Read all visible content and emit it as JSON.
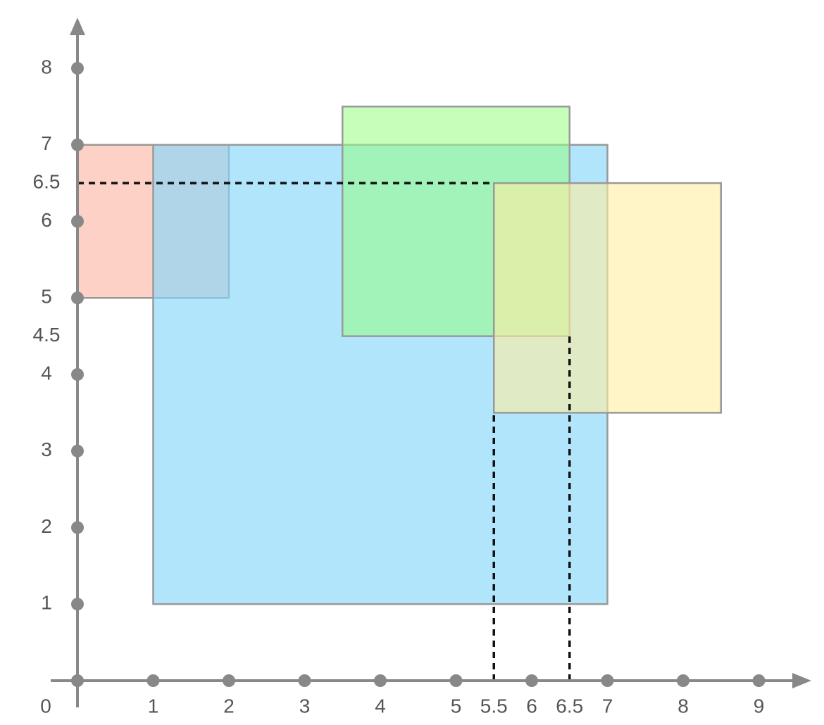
{
  "x_ticks": [
    0,
    1,
    2,
    3,
    4,
    5,
    5.5,
    6,
    6.5,
    7,
    8,
    9
  ],
  "y_ticks": [
    1,
    2,
    3,
    4,
    4.5,
    5,
    6,
    6.5,
    7,
    8
  ],
  "rectangles": [
    {
      "x1": 0,
      "y1": 5,
      "x2": 2,
      "y2": 7,
      "color": "rgba(252,190,172,0.7)"
    },
    {
      "x1": 1,
      "y1": 1,
      "x2": 7,
      "y2": 7,
      "color": "rgba(135,215,250,0.65)"
    },
    {
      "x1": 3.5,
      "y1": 4.5,
      "x2": 6.5,
      "y2": 7.5,
      "color": "rgba(150,255,130,0.55)"
    },
    {
      "x1": 5.5,
      "y1": 3.5,
      "x2": 8.5,
      "y2": 6.5,
      "color": "rgba(255,238,160,0.6)"
    }
  ],
  "guides": [
    {
      "x1": 0,
      "y1": 6.5,
      "x2": 5.5,
      "y2": 6.5
    },
    {
      "x1": 5.5,
      "y1": 0,
      "x2": 5.5,
      "y2": 3.5
    },
    {
      "x1": 6.5,
      "y1": 0,
      "x2": 6.5,
      "y2": 4.5
    }
  ]
}
